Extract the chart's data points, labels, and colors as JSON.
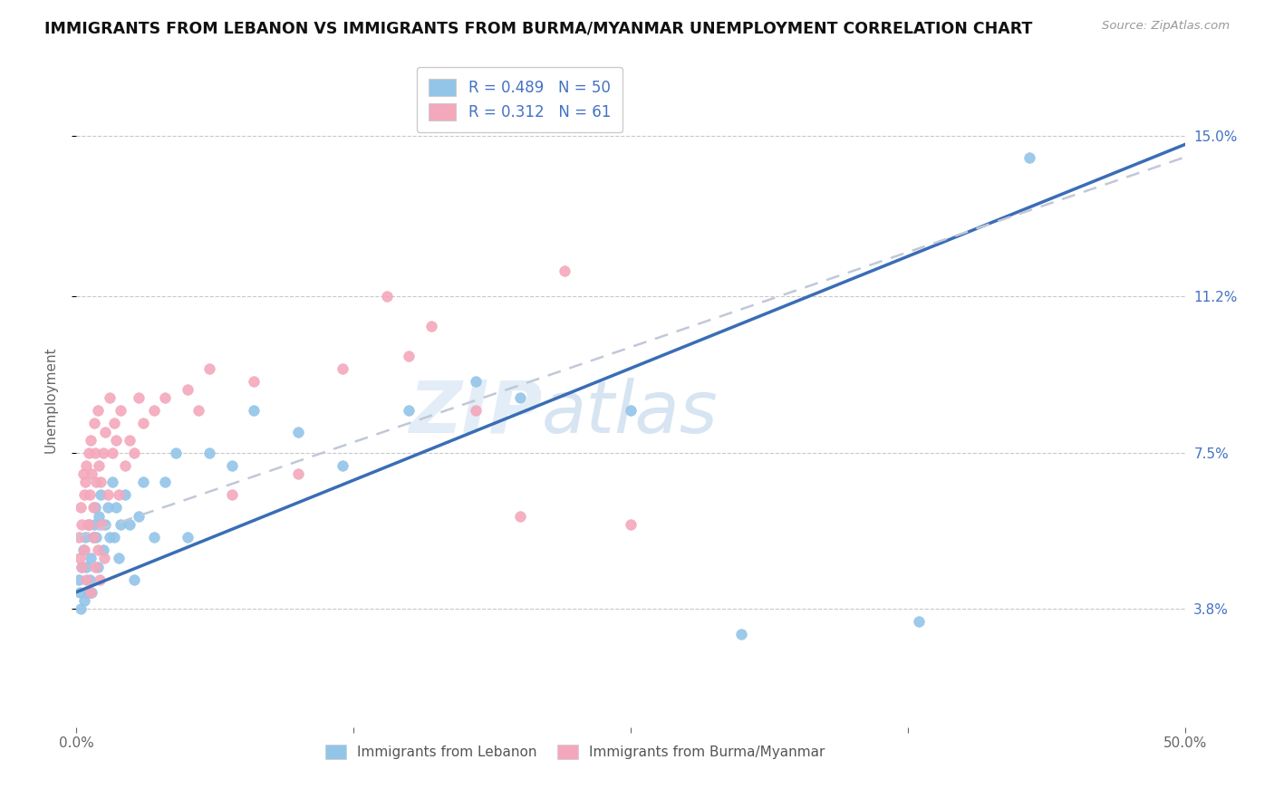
{
  "title": "IMMIGRANTS FROM LEBANON VS IMMIGRANTS FROM BURMA/MYANMAR UNEMPLOYMENT CORRELATION CHART",
  "source": "Source: ZipAtlas.com",
  "ylabel_label": "Unemployment",
  "x_min": 0.0,
  "x_max": 50.0,
  "y_min": 1.0,
  "y_max": 16.5,
  "ylabel_ticks": [
    3.8,
    7.5,
    11.2,
    15.0
  ],
  "legend_line1": "R = 0.489   N = 50",
  "legend_line2": "R = 0.312   N = 61",
  "color_blue": "#92C5E8",
  "color_pink": "#F4A8BC",
  "color_blue_line": "#3A6DB5",
  "color_pink_line": "#E8829A",
  "color_gray_dash": "#C0C8D8",
  "watermark_zip": "ZIP",
  "watermark_atlas": "atlas",
  "series_lebanon_x": [
    0.1,
    0.15,
    0.2,
    0.25,
    0.3,
    0.35,
    0.4,
    0.45,
    0.5,
    0.55,
    0.6,
    0.65,
    0.7,
    0.75,
    0.8,
    0.85,
    0.9,
    0.95,
    1.0,
    1.1,
    1.2,
    1.3,
    1.4,
    1.5,
    1.6,
    1.7,
    1.8,
    1.9,
    2.0,
    2.2,
    2.4,
    2.6,
    2.8,
    3.0,
    3.5,
    4.0,
    4.5,
    5.0,
    6.0,
    7.0,
    8.0,
    10.0,
    12.0,
    15.0,
    18.0,
    20.0,
    25.0,
    30.0,
    38.0,
    43.0
  ],
  "series_lebanon_y": [
    4.5,
    4.2,
    3.8,
    4.8,
    5.2,
    4.0,
    5.5,
    4.8,
    4.2,
    5.8,
    4.5,
    5.0,
    4.2,
    5.5,
    5.8,
    6.2,
    5.5,
    4.8,
    6.0,
    6.5,
    5.2,
    5.8,
    6.2,
    5.5,
    6.8,
    5.5,
    6.2,
    5.0,
    5.8,
    6.5,
    5.8,
    4.5,
    6.0,
    6.8,
    5.5,
    6.8,
    7.5,
    5.5,
    7.5,
    7.2,
    8.5,
    8.0,
    7.2,
    8.5,
    9.2,
    8.8,
    8.5,
    3.2,
    3.5,
    14.5
  ],
  "series_burma_x": [
    0.1,
    0.15,
    0.2,
    0.25,
    0.3,
    0.35,
    0.4,
    0.45,
    0.5,
    0.55,
    0.6,
    0.65,
    0.7,
    0.75,
    0.8,
    0.85,
    0.9,
    0.95,
    1.0,
    1.1,
    1.2,
    1.3,
    1.4,
    1.5,
    1.6,
    1.7,
    1.8,
    1.9,
    2.0,
    2.2,
    2.4,
    2.6,
    2.8,
    3.0,
    3.5,
    4.0,
    5.0,
    5.5,
    6.0,
    7.0,
    8.0,
    10.0,
    12.0,
    14.0,
    15.0,
    16.0,
    18.0,
    20.0,
    22.0,
    25.0,
    0.25,
    0.35,
    0.45,
    0.55,
    0.65,
    0.75,
    0.85,
    0.95,
    1.05,
    1.15,
    1.25
  ],
  "series_burma_y": [
    5.5,
    5.0,
    6.2,
    5.8,
    7.0,
    6.5,
    6.8,
    7.2,
    5.8,
    7.5,
    6.5,
    7.8,
    7.0,
    6.2,
    8.2,
    7.5,
    6.8,
    8.5,
    7.2,
    6.8,
    7.5,
    8.0,
    6.5,
    8.8,
    7.5,
    8.2,
    7.8,
    6.5,
    8.5,
    7.2,
    7.8,
    7.5,
    8.8,
    8.2,
    8.5,
    8.8,
    9.0,
    8.5,
    9.5,
    6.5,
    9.2,
    7.0,
    9.5,
    11.2,
    9.8,
    10.5,
    8.5,
    6.0,
    11.8,
    5.8,
    4.8,
    5.2,
    4.5,
    5.8,
    4.2,
    5.5,
    4.8,
    5.2,
    4.5,
    5.8,
    5.0
  ],
  "trend_lebanon_x0": 0.0,
  "trend_lebanon_y0": 4.2,
  "trend_lebanon_x1": 50.0,
  "trend_lebanon_y1": 14.8,
  "trend_burma_x0": 0.0,
  "trend_burma_y0": 5.5,
  "trend_burma_x1": 50.0,
  "trend_burma_y1": 14.5
}
